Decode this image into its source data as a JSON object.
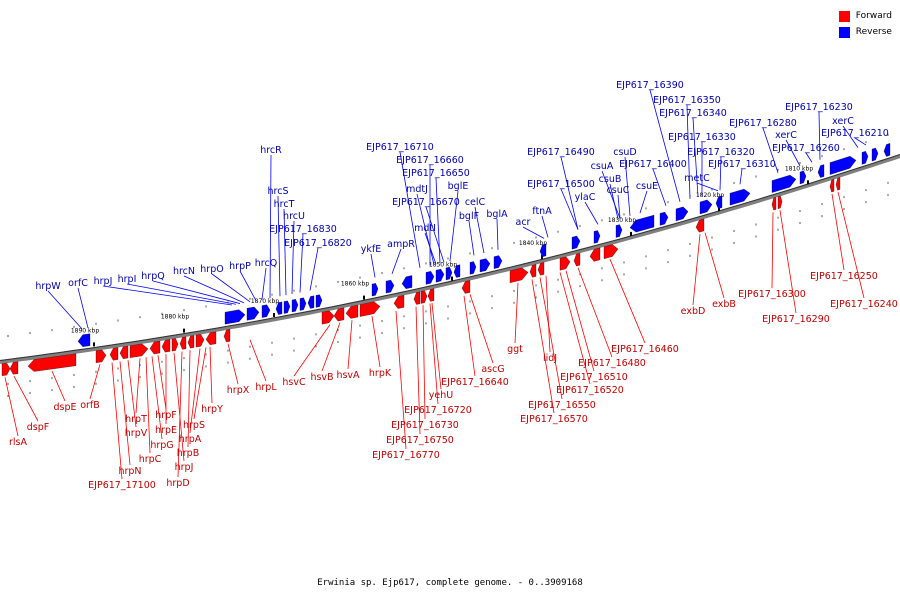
{
  "colors": {
    "forward": "#ff0000",
    "reverse": "#0000ff",
    "axis": "#808080"
  },
  "legend": [
    {
      "label": "Forward",
      "color": "#ff0000"
    },
    {
      "label": "Reverse",
      "color": "#0000ff"
    }
  ],
  "caption": "Erwinia sp. Ejp617, complete genome. - 0..3909168",
  "ruler": [
    "1890 kbp",
    "1880 kbp",
    "1870 kbp",
    "1860 kbp",
    "1850 kbp",
    "1840 kbp",
    "1830 kbp",
    "1820 kbp",
    "1810 kbp"
  ],
  "forward_genes": [
    "rlsA",
    "dspF",
    "dspE",
    "orfB",
    "EJP617_17100",
    "hrpN",
    "hrpV",
    "hrpT",
    "hrpC",
    "hrpG",
    "hrpF",
    "hrpE",
    "hrpJ",
    "hrpD",
    "hrpB",
    "hrpA",
    "hrpS",
    "hrpY",
    "hrpX",
    "hrpL",
    "hsvC",
    "hsvB",
    "hsvA",
    "hrpK",
    "EJP617_16770",
    "EJP617_16750",
    "EJP617_16730",
    "EJP617_16720",
    "yehU",
    "EJP617_16640",
    "ascG",
    "ggt",
    "EJP617_16570",
    "EJP617_16550",
    "lidJ",
    "EJP617_16520",
    "EJP617_16510",
    "EJP617_16480",
    "EJP617_16460",
    "exbD",
    "exbB",
    "EJP617_16300",
    "EJP617_16290",
    "EJP617_16250",
    "EJP617_16240"
  ],
  "reverse_genes": [
    "hrpW",
    "orfC",
    "hrpJ",
    "hrpI",
    "hrpQ",
    "hrcN",
    "hrpO",
    "hrpP",
    "hrcQ",
    "hrcR",
    "hrcS",
    "hrcT",
    "hrcU",
    "EJP617_16830",
    "EJP617_16820",
    "ykfE",
    "ampR",
    "EJP617_16710",
    "EJP617_16660",
    "mdtJ",
    "EJP617_16650",
    "bglE",
    "EJP617_16670",
    "mdtI",
    "celC",
    "bglF",
    "bglA",
    "acr",
    "ftnA",
    "EJP617_16490",
    "EJP617_16500",
    "ylaC",
    "csuA",
    "csuB",
    "csuC",
    "csuD",
    "csuE",
    "EJP617_16400",
    "EJP617_16390",
    "EJP617_16350",
    "EJP617_16340",
    "EJP617_16330",
    "metC",
    "EJP617_16320",
    "EJP617_16310",
    "EJP617_16280",
    "xerC",
    "EJP617_16260",
    "EJP617_16230",
    "xerC",
    "EJP617_16210"
  ]
}
